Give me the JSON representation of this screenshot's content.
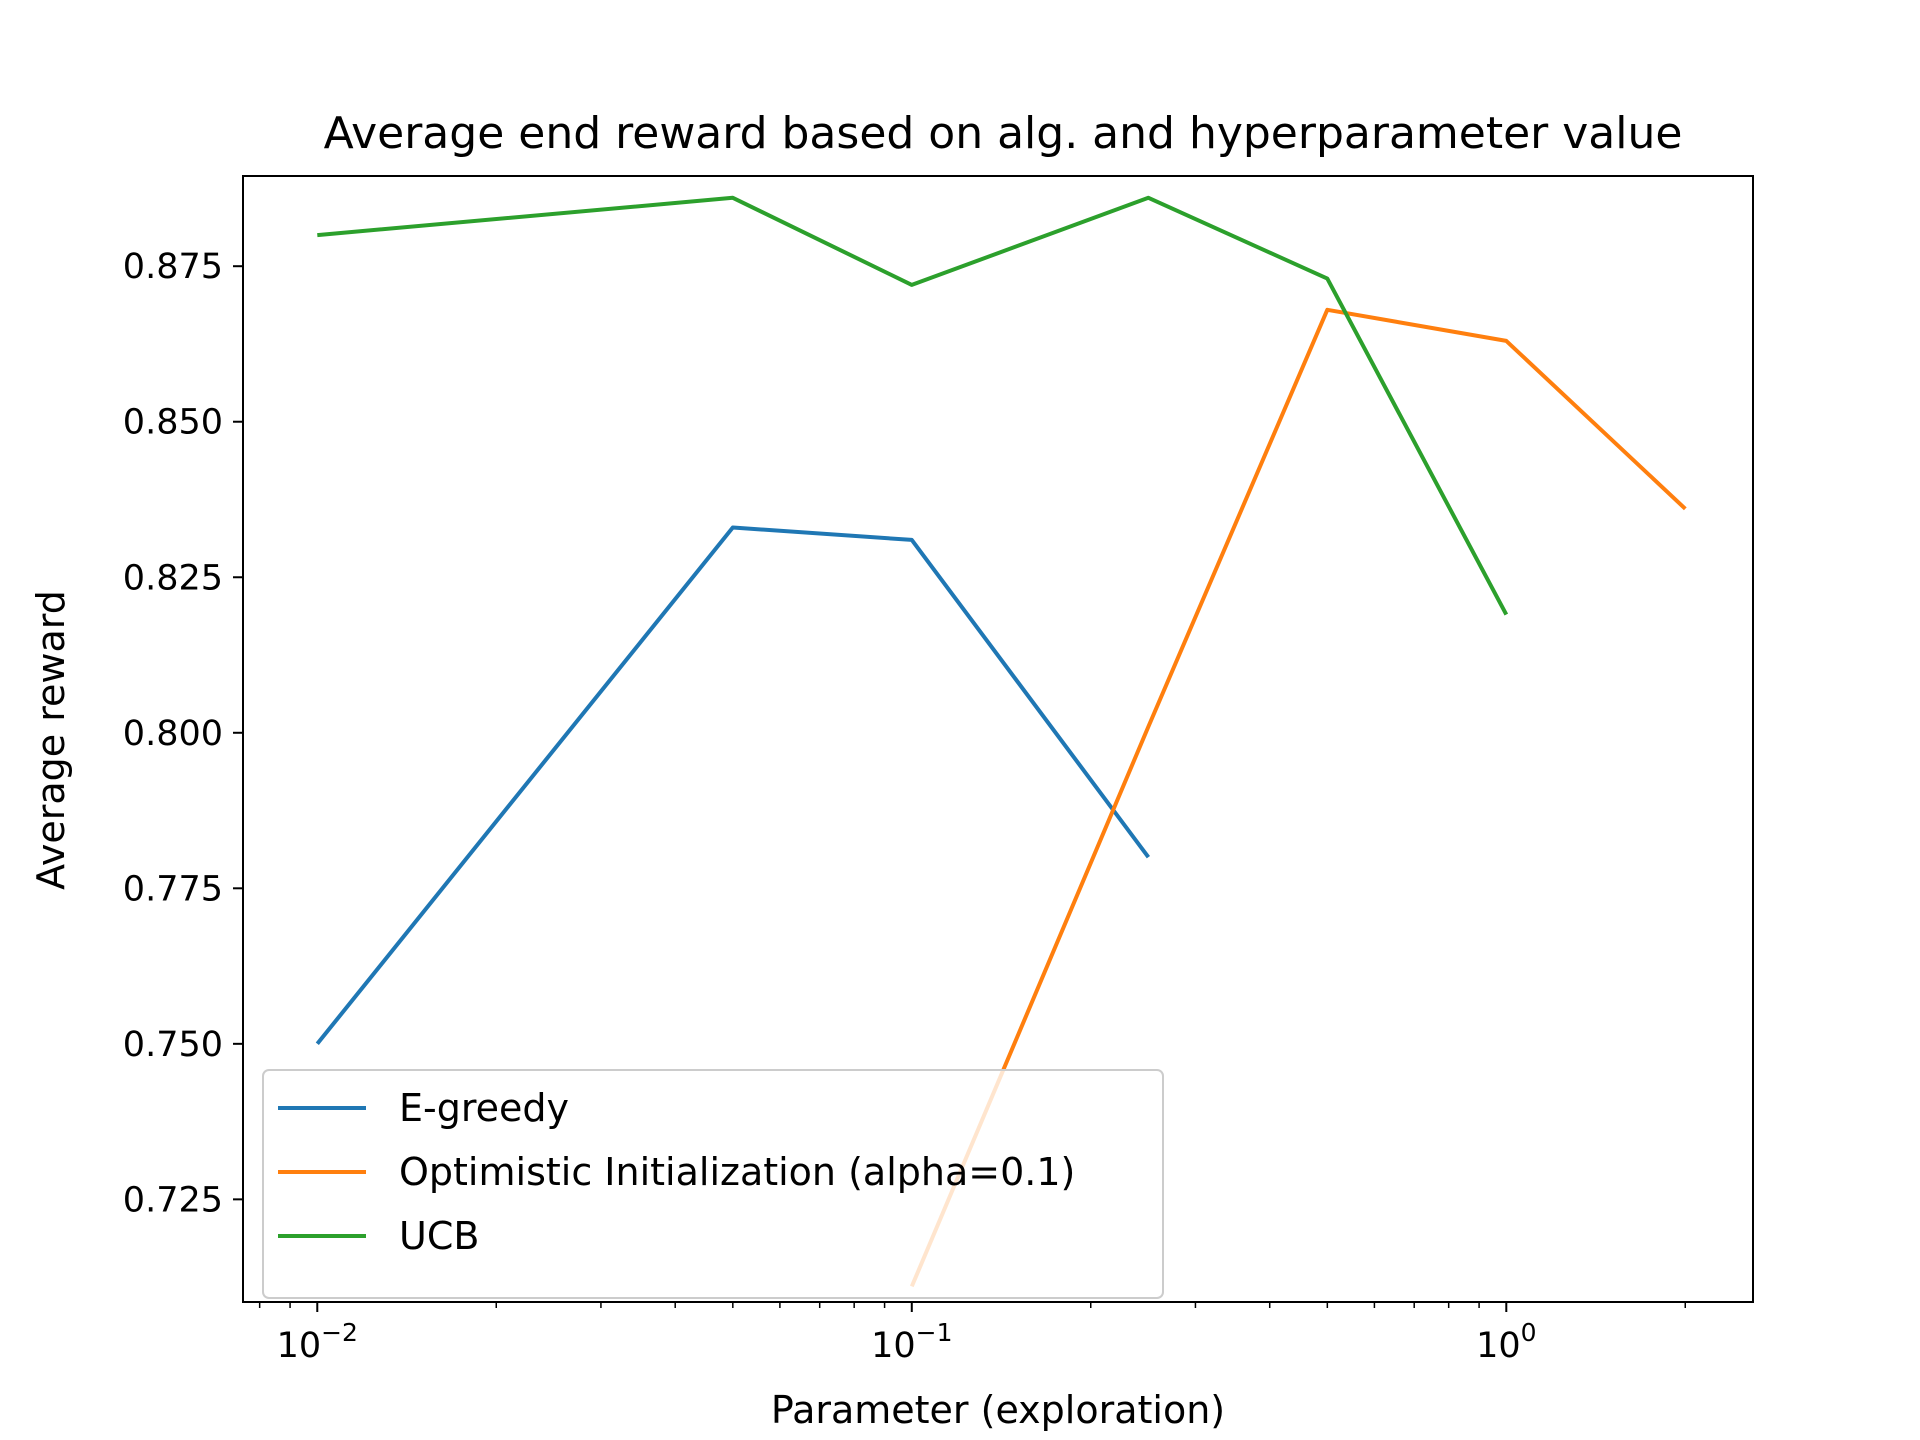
{
  "chart_data": {
    "type": "line",
    "title": "Average end reward based on alg. and hyperparameter value",
    "xlabel": "Parameter (exploration)",
    "ylabel": "Average reward",
    "xscale": "log",
    "xlim": [
      0.0075,
      2.6
    ],
    "ylim": [
      0.7085,
      0.8895
    ],
    "xticks": [
      {
        "value": 0.01,
        "base": "10",
        "exp": "−2"
      },
      {
        "value": 0.1,
        "base": "10",
        "exp": "−1"
      },
      {
        "value": 1,
        "base": "10",
        "exp": "0"
      }
    ],
    "yticks": [
      {
        "value": 0.725,
        "label": "0.725"
      },
      {
        "value": 0.75,
        "label": "0.750"
      },
      {
        "value": 0.775,
        "label": "0.775"
      },
      {
        "value": 0.8,
        "label": "0.800"
      },
      {
        "value": 0.825,
        "label": "0.825"
      },
      {
        "value": 0.85,
        "label": "0.850"
      },
      {
        "value": 0.875,
        "label": "0.875"
      }
    ],
    "grid": false,
    "legend_position": "lower-left",
    "series": [
      {
        "name": "E-greedy",
        "color": "#1f77b4",
        "x": [
          0.01,
          0.05,
          0.1,
          0.25
        ],
        "y": [
          0.75,
          0.833,
          0.831,
          0.78
        ]
      },
      {
        "name": "Optimistic Initialization (alpha=0.1)",
        "color": "#ff7f0e",
        "x": [
          0.1,
          0.25,
          0.5,
          1,
          2
        ],
        "y": [
          0.711,
          0.801,
          0.868,
          0.863,
          0.836
        ]
      },
      {
        "name": "UCB",
        "color": "#2ca02c",
        "x": [
          0.01,
          0.05,
          0.1,
          0.25,
          0.5,
          1
        ],
        "y": [
          0.88,
          0.886,
          0.872,
          0.886,
          0.873,
          0.819
        ]
      }
    ]
  }
}
